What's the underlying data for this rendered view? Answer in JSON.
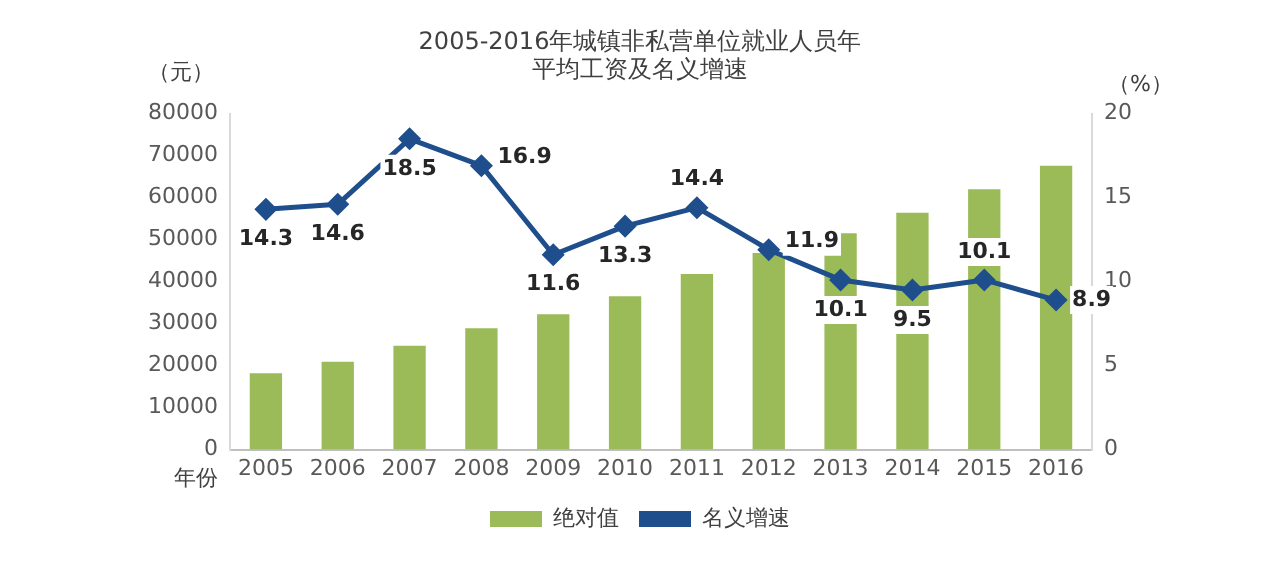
{
  "chart_data": {
    "type": "bar",
    "title": "2005-2016年城镇非私营单位就业人员年平均工资及名义增速",
    "xlabel": "年份",
    "ylabel": "（元）",
    "y2label": "（%）",
    "categories": [
      "2005",
      "2006",
      "2007",
      "2008",
      "2009",
      "2010",
      "2011",
      "2012",
      "2013",
      "2014",
      "2015",
      "2016"
    ],
    "series": [
      {
        "name": "绝对值",
        "color": "#9bbb59",
        "values": [
          18200,
          20900,
          24700,
          28900,
          32200,
          36500,
          41800,
          46800,
          51500,
          56400,
          62000,
          67600
        ]
      },
      {
        "name": "名义增速",
        "type": "line",
        "axis": "y2",
        "color": "#1f4e8c",
        "marker": "diamond",
        "values": [
          14.3,
          14.6,
          18.5,
          16.9,
          11.6,
          13.3,
          14.4,
          11.9,
          10.1,
          9.5,
          10.1,
          8.9
        ],
        "value_labels": [
          "14.3",
          "14.6",
          "18.5",
          "16.9",
          "11.6",
          "13.3",
          "14.4",
          "11.9",
          "10.1",
          "9.5",
          "10.1",
          "8.9"
        ]
      }
    ],
    "ylim": [
      0,
      80000
    ],
    "yticks": [
      0,
      10000,
      20000,
      30000,
      40000,
      50000,
      60000,
      70000,
      80000
    ],
    "y2lim": [
      0,
      20
    ],
    "y2ticks": [
      0,
      5,
      10,
      15,
      20
    ],
    "grid": false,
    "legend": "bottom"
  }
}
